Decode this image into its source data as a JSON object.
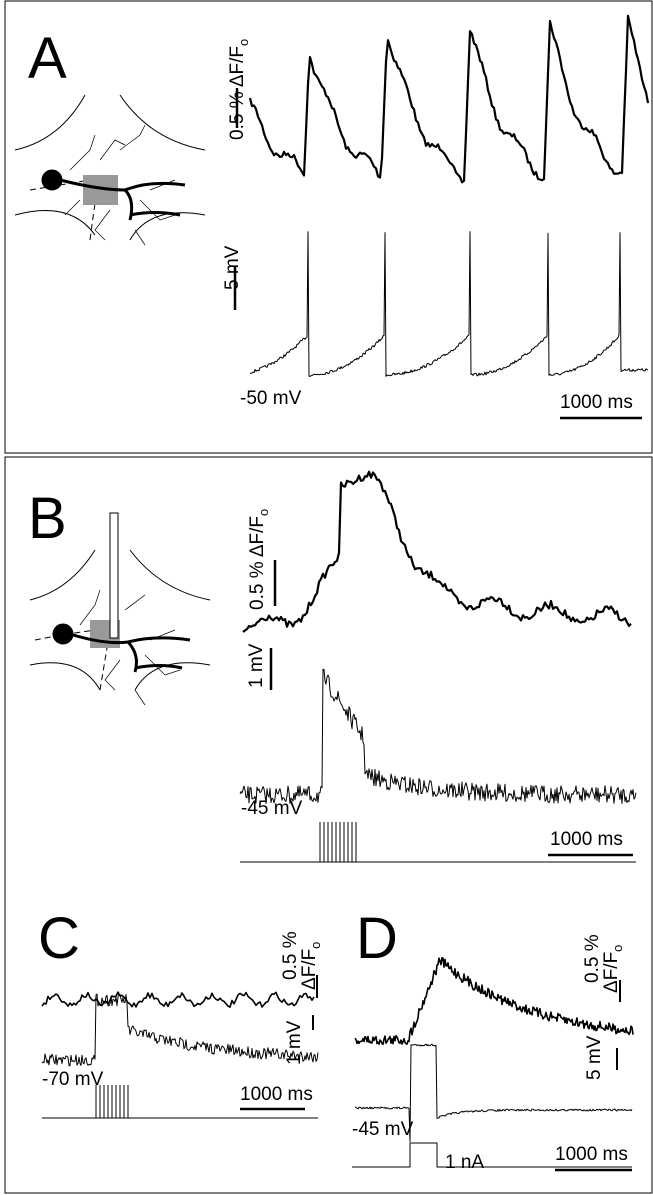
{
  "panels": [
    {
      "label": "A",
      "dff_scale": "0.5 % ΔF/F",
      "dff_sub": "o",
      "mv_scale": "5 mV",
      "holding": "-50 mV",
      "time_scale": "1000 ms"
    },
    {
      "label": "B",
      "dff_scale": "0.5 % ΔF/F",
      "dff_sub": "o",
      "mv_scale": "1 mV",
      "holding": "-45 mV",
      "time_scale": "1000 ms"
    },
    {
      "label": "C",
      "dff_scale": "0.5 %",
      "dff_unit": "ΔF/F",
      "dff_sub": "o",
      "mv_scale": "1 mV",
      "holding": "-70 mV",
      "time_scale": "1000 ms"
    },
    {
      "label": "D",
      "dff_scale": "0.5 %",
      "dff_unit": "ΔF/F",
      "dff_sub": "o",
      "mv_scale": "5 mV",
      "holding": "-45 mV",
      "current": "1 nA",
      "time_scale": "1000 ms"
    }
  ]
}
